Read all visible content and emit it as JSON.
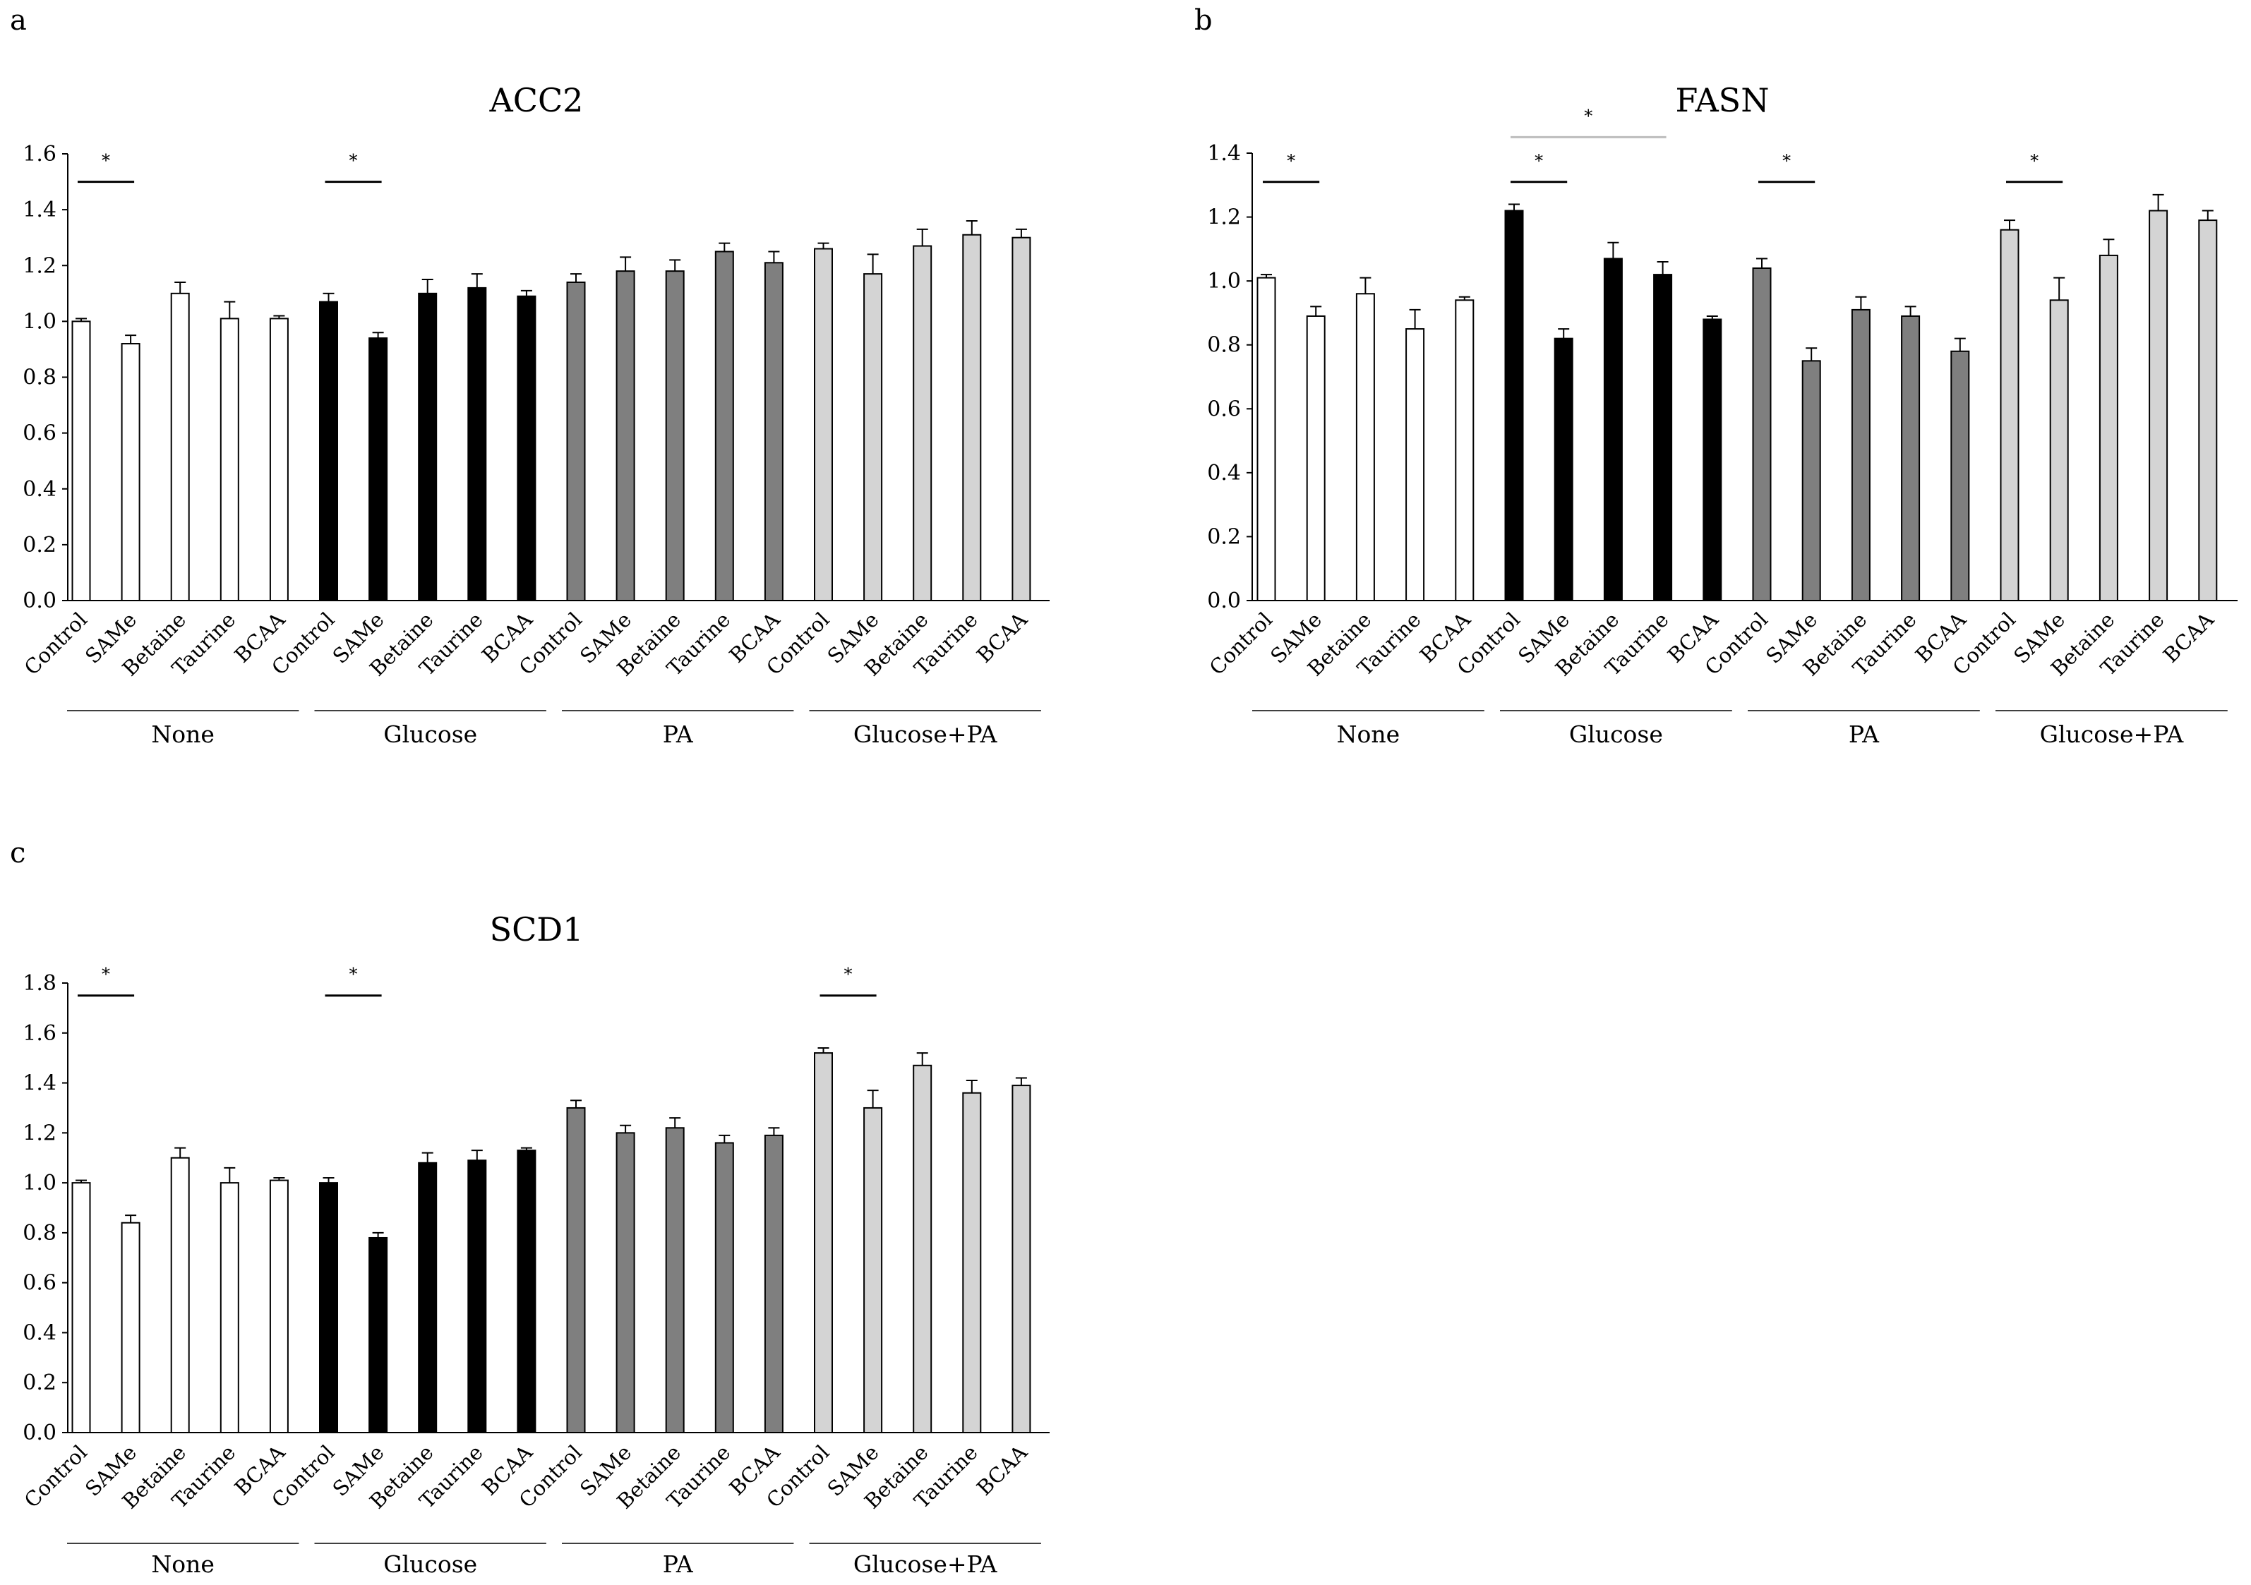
{
  "panel_letters": [
    "a",
    "b",
    "c"
  ],
  "colors": {
    "None": "#ffffff",
    "Glucose": "#000000",
    "PA": "#7f7f7f",
    "Glucose+PA": "#d4d4d4",
    "outline": "#000000",
    "axis": "#000000",
    "bracket_gray": "#bdbdbd"
  },
  "chart_data": [
    {
      "type": "bar",
      "panel": "a",
      "title": "ACC2",
      "xlabel": "",
      "ylabel": "",
      "ylim": [
        0,
        1.6
      ],
      "yticks": [
        "0.0",
        "0.2",
        "0.4",
        "0.6",
        "0.8",
        "1.0",
        "1.2",
        "1.4",
        "1.6"
      ],
      "treatments": [
        "Control",
        "SAMe",
        "Betaine",
        "Taurine",
        "BCAA"
      ],
      "groups": [
        "None",
        "Glucose",
        "PA",
        "Glucose+PA"
      ],
      "values": [
        1.0,
        0.92,
        1.1,
        1.01,
        1.01,
        1.07,
        0.94,
        1.1,
        1.12,
        1.09,
        1.14,
        1.18,
        1.18,
        1.25,
        1.21,
        1.26,
        1.17,
        1.27,
        1.31,
        1.3
      ],
      "errors": [
        0.01,
        0.03,
        0.04,
        0.06,
        0.01,
        0.03,
        0.02,
        0.05,
        0.05,
        0.02,
        0.03,
        0.05,
        0.04,
        0.03,
        0.04,
        0.02,
        0.07,
        0.06,
        0.05,
        0.03
      ],
      "significance": [
        {
          "from": 0,
          "to": 1,
          "label": "*",
          "level": 1.5,
          "style": "dark"
        },
        {
          "from": 5,
          "to": 6,
          "label": "*",
          "level": 1.5,
          "style": "dark"
        }
      ]
    },
    {
      "type": "bar",
      "panel": "b",
      "title": "FASN",
      "xlabel": "",
      "ylabel": "",
      "ylim": [
        0,
        1.4
      ],
      "yticks": [
        "0.0",
        "0.2",
        "0.4",
        "0.6",
        "0.8",
        "1.0",
        "1.2",
        "1.4"
      ],
      "treatments": [
        "Control",
        "SAMe",
        "Betaine",
        "Taurine",
        "BCAA"
      ],
      "groups": [
        "None",
        "Glucose",
        "PA",
        "Glucose+PA"
      ],
      "values": [
        1.01,
        0.89,
        0.96,
        0.85,
        0.94,
        1.22,
        0.82,
        1.07,
        1.02,
        0.88,
        1.04,
        0.75,
        0.91,
        0.89,
        0.78,
        1.16,
        0.94,
        1.08,
        1.22,
        1.19
      ],
      "errors": [
        0.01,
        0.03,
        0.05,
        0.06,
        0.01,
        0.02,
        0.03,
        0.05,
        0.04,
        0.01,
        0.03,
        0.04,
        0.04,
        0.03,
        0.04,
        0.03,
        0.07,
        0.05,
        0.05,
        0.03
      ],
      "significance": [
        {
          "from": 0,
          "to": 1,
          "label": "*",
          "level": 1.31,
          "style": "dark"
        },
        {
          "from": 5,
          "to": 6,
          "label": "*",
          "level": 1.31,
          "style": "dark"
        },
        {
          "from": 5,
          "to": 8,
          "label": "*",
          "level": 1.45,
          "style": "gray"
        },
        {
          "from": 10,
          "to": 11,
          "label": "*",
          "level": 1.31,
          "style": "dark"
        },
        {
          "from": 15,
          "to": 16,
          "label": "*",
          "level": 1.31,
          "style": "dark"
        }
      ]
    },
    {
      "type": "bar",
      "panel": "c",
      "title": "SCD1",
      "xlabel": "",
      "ylabel": "",
      "ylim": [
        0,
        1.8
      ],
      "yticks": [
        "0.0",
        "0.2",
        "0.4",
        "0.6",
        "0.8",
        "1.0",
        "1.2",
        "1.4",
        "1.6",
        "1.8"
      ],
      "treatments": [
        "Control",
        "SAMe",
        "Betaine",
        "Taurine",
        "BCAA"
      ],
      "groups": [
        "None",
        "Glucose",
        "PA",
        "Glucose+PA"
      ],
      "values": [
        1.0,
        0.84,
        1.1,
        1.0,
        1.01,
        1.0,
        0.78,
        1.08,
        1.09,
        1.13,
        1.3,
        1.2,
        1.22,
        1.16,
        1.19,
        1.52,
        1.3,
        1.47,
        1.36,
        1.39
      ],
      "errors": [
        0.01,
        0.03,
        0.04,
        0.06,
        0.01,
        0.02,
        0.02,
        0.04,
        0.04,
        0.01,
        0.03,
        0.03,
        0.04,
        0.03,
        0.03,
        0.02,
        0.07,
        0.05,
        0.05,
        0.03
      ],
      "significance": [
        {
          "from": 0,
          "to": 1,
          "label": "*",
          "level": 1.75,
          "style": "dark"
        },
        {
          "from": 5,
          "to": 6,
          "label": "*",
          "level": 1.75,
          "style": "dark"
        },
        {
          "from": 15,
          "to": 16,
          "label": "*",
          "level": 1.75,
          "style": "dark"
        }
      ]
    }
  ]
}
